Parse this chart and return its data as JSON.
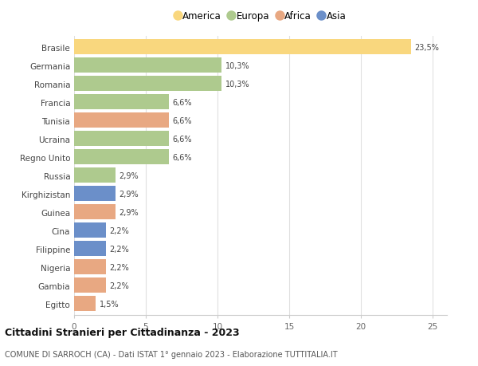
{
  "categories": [
    "Brasile",
    "Germania",
    "Romania",
    "Francia",
    "Tunisia",
    "Ucraina",
    "Regno Unito",
    "Russia",
    "Kirghizistan",
    "Guinea",
    "Cina",
    "Filippine",
    "Nigeria",
    "Gambia",
    "Egitto"
  ],
  "values": [
    23.5,
    10.3,
    10.3,
    6.6,
    6.6,
    6.6,
    6.6,
    2.9,
    2.9,
    2.9,
    2.2,
    2.2,
    2.2,
    2.2,
    1.5
  ],
  "labels": [
    "23,5%",
    "10,3%",
    "10,3%",
    "6,6%",
    "6,6%",
    "6,6%",
    "6,6%",
    "2,9%",
    "2,9%",
    "2,9%",
    "2,2%",
    "2,2%",
    "2,2%",
    "2,2%",
    "1,5%"
  ],
  "continents": [
    "America",
    "Europa",
    "Europa",
    "Europa",
    "Africa",
    "Europa",
    "Europa",
    "Europa",
    "Asia",
    "Africa",
    "Asia",
    "Asia",
    "Africa",
    "Africa",
    "Africa"
  ],
  "colors": {
    "America": "#F9D77E",
    "Europa": "#AECA8E",
    "Africa": "#E8A882",
    "Asia": "#6B8FC9"
  },
  "legend": [
    {
      "label": "America",
      "color": "#F9D77E"
    },
    {
      "label": "Europa",
      "color": "#AECA8E"
    },
    {
      "label": "Africa",
      "color": "#E8A882"
    },
    {
      "label": "Asia",
      "color": "#6B8FC9"
    }
  ],
  "title": "Cittadini Stranieri per Cittadinanza - 2023",
  "subtitle": "COMUNE DI SARROCH (CA) - Dati ISTAT 1° gennaio 2023 - Elaborazione TUTTITALIA.IT",
  "xlim": [
    0,
    26
  ],
  "xticks": [
    0,
    5,
    10,
    15,
    20,
    25
  ],
  "background_color": "#ffffff",
  "grid_color": "#e0e0e0",
  "bar_height": 0.82
}
